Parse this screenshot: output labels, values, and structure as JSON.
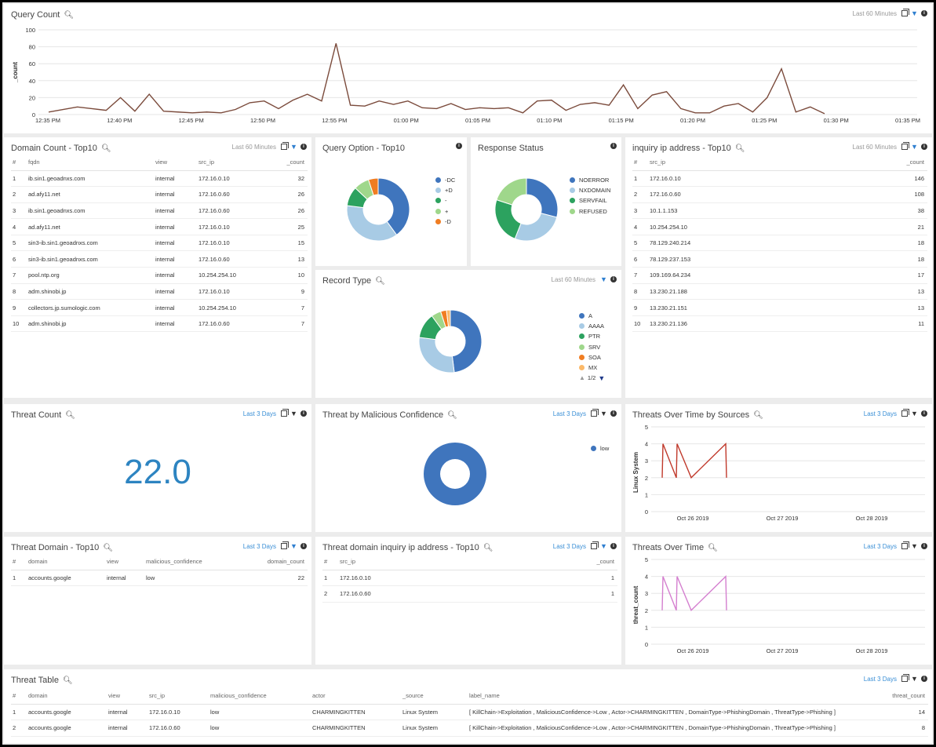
{
  "colors": {
    "blue": "#3f75bd",
    "lightblue": "#a8cbe5",
    "green": "#2ca25f",
    "lightgreen": "#9fd78b",
    "orange": "#f07d22",
    "lightorange": "#fbb969",
    "line": "#7b4b3c",
    "red": "#c0392b",
    "pink": "#d47fcf"
  },
  "icons": {
    "zoom": "magnifier-icon",
    "copy": "copy-icon",
    "filter": "funnel-icon",
    "info": "info-icon"
  },
  "query_count": {
    "title": "Query Count",
    "range": "Last 60 Minutes",
    "chart_data": {
      "type": "line",
      "ylabel": "_count",
      "ylim": [
        0,
        100
      ],
      "yticks": [
        "0",
        "20",
        "40",
        "60",
        "80",
        "100"
      ],
      "xticks": [
        "12:35 PM",
        "12:40 PM",
        "12:45 PM",
        "12:50 PM",
        "12:55 PM",
        "01:00 PM",
        "01:05 PM",
        "01:10 PM",
        "01:15 PM",
        "01:20 PM",
        "01:25 PM",
        "01:30 PM",
        "01:35 PM"
      ],
      "values": [
        3,
        6,
        9,
        7,
        5,
        20,
        4,
        24,
        4,
        3,
        2,
        3,
        2,
        6,
        14,
        16,
        7,
        17,
        24,
        16,
        84,
        11,
        10,
        16,
        12,
        16,
        8,
        7,
        13,
        6,
        8,
        7,
        8,
        2,
        16,
        17,
        5,
        12,
        14,
        11,
        35,
        7,
        23,
        27,
        7,
        2,
        2,
        10,
        13,
        3,
        20,
        54,
        3,
        9,
        1
      ]
    }
  },
  "domain_count": {
    "title": "Domain Count - Top10",
    "range": "Last 60 Minutes",
    "columns": [
      "#",
      "fqdn",
      "view",
      "src_ip",
      "_count"
    ],
    "rows": [
      [
        "1",
        "ib.sin1.geoadnxs.com",
        "internal",
        "172.16.0.10",
        "32"
      ],
      [
        "2",
        "ad.afy11.net",
        "internal",
        "172.16.0.60",
        "26"
      ],
      [
        "3",
        "ib.sin1.geoadnxs.com",
        "internal",
        "172.16.0.60",
        "26"
      ],
      [
        "4",
        "ad.afy11.net",
        "internal",
        "172.16.0.10",
        "25"
      ],
      [
        "5",
        "sin3-ib.sin1.geoadnxs.com",
        "internal",
        "172.16.0.10",
        "15"
      ],
      [
        "6",
        "sin3-ib.sin1.geoadnxs.com",
        "internal",
        "172.16.0.60",
        "13"
      ],
      [
        "7",
        "pool.ntp.org",
        "internal",
        "10.254.254.10",
        "10"
      ],
      [
        "8",
        "adm.shinobi.jp",
        "internal",
        "172.16.0.10",
        "9"
      ],
      [
        "9",
        "collectors.jp.sumologic.com",
        "internal",
        "10.254.254.10",
        "7"
      ],
      [
        "10",
        "adm.shinobi.jp",
        "internal",
        "172.16.0.60",
        "7"
      ]
    ]
  },
  "query_option": {
    "title": "Query Option - Top10",
    "chart_data": {
      "type": "pie",
      "labels": [
        "-DC",
        "+D",
        "-",
        "+",
        "-D"
      ],
      "values": [
        40,
        37,
        10,
        8,
        5
      ],
      "colors": [
        "#3f75bd",
        "#a8cbe5",
        "#2ca25f",
        "#9fd78b",
        "#f07d22"
      ]
    }
  },
  "response_status": {
    "title": "Response Status",
    "chart_data": {
      "type": "pie",
      "labels": [
        "NOERROR",
        "NXDOMAIN",
        "SERVFAIL",
        "REFUSED"
      ],
      "values": [
        29,
        27,
        24,
        20
      ],
      "colors": [
        "#3f75bd",
        "#a8cbe5",
        "#2ca25f",
        "#9fd78b"
      ]
    }
  },
  "record_type": {
    "title": "Record Type",
    "range": "Last 60 Minutes",
    "page": "1/2",
    "chart_data": {
      "type": "pie",
      "labels": [
        "A",
        "AAAA",
        "PTR",
        "SRV",
        "SOA",
        "MX"
      ],
      "values": [
        48,
        29,
        13,
        5,
        3,
        2
      ],
      "colors": [
        "#3f75bd",
        "#a8cbe5",
        "#2ca25f",
        "#9fd78b",
        "#f07d22",
        "#fbb969"
      ]
    }
  },
  "inquiry_ip": {
    "title": "inquiry ip address - Top10",
    "range": "Last 60 Minutes",
    "columns": [
      "#",
      "src_ip",
      "_count"
    ],
    "rows": [
      [
        "1",
        "172.16.0.10",
        "146"
      ],
      [
        "2",
        "172.16.0.60",
        "108"
      ],
      [
        "3",
        "10.1.1.153",
        "38"
      ],
      [
        "4",
        "10.254.254.10",
        "21"
      ],
      [
        "5",
        "78.129.240.214",
        "18"
      ],
      [
        "6",
        "78.129.237.153",
        "18"
      ],
      [
        "7",
        "109.169.64.234",
        "17"
      ],
      [
        "8",
        "13.230.21.188",
        "13"
      ],
      [
        "9",
        "13.230.21.151",
        "13"
      ],
      [
        "10",
        "13.230.21.136",
        "11"
      ]
    ]
  },
  "threat_count": {
    "title": "Threat Count",
    "range": "Last 3 Days",
    "value": "22.0"
  },
  "threat_confidence": {
    "title": "Threat by Malicious Confidence",
    "range": "Last 3 Days",
    "chart_data": {
      "type": "pie",
      "labels": [
        "low"
      ],
      "values": [
        100
      ],
      "colors": [
        "#3f75bd"
      ]
    }
  },
  "threats_sources": {
    "title": "Threats Over Time by Sources",
    "range": "Last 3 Days",
    "chart_data": {
      "type": "line",
      "ylabel": "Linux System",
      "ylim": [
        0,
        5
      ],
      "yticks": [
        "0",
        "1",
        "2",
        "3",
        "4",
        "5"
      ],
      "xticks": [
        "Oct 26 2019",
        "Oct 27 2019",
        "Oct 28 2019"
      ],
      "values": [
        2,
        4,
        2,
        4,
        2,
        4,
        2
      ]
    }
  },
  "threat_domain": {
    "title": "Threat Domain - Top10",
    "range": "Last 3 Days",
    "columns": [
      "#",
      "domain",
      "view",
      "malicious_confidence",
      "domain_count"
    ],
    "rows": [
      [
        "1",
        "accounts.google",
        "internal",
        "low",
        "22"
      ]
    ]
  },
  "threat_inquiry": {
    "title": "Threat domain inquiry ip address - Top10",
    "range": "Last 3 Days",
    "columns": [
      "#",
      "src_ip",
      "_count"
    ],
    "rows": [
      [
        "1",
        "172.16.0.10",
        "1"
      ],
      [
        "2",
        "172.16.0.60",
        "1"
      ]
    ]
  },
  "threats_time": {
    "title": "Threats Over Time",
    "range": "Last 3 Days",
    "chart_data": {
      "type": "line",
      "ylabel": "threat_count",
      "ylim": [
        0,
        5
      ],
      "yticks": [
        "0",
        "1",
        "2",
        "3",
        "4",
        "5"
      ],
      "xticks": [
        "Oct 26 2019",
        "Oct 27 2019",
        "Oct 28 2019"
      ],
      "values": [
        2,
        4,
        2,
        4,
        2,
        4,
        2
      ]
    }
  },
  "threat_table": {
    "title": "Threat Table",
    "range": "Last 3 Days",
    "columns": [
      "#",
      "domain",
      "view",
      "src_ip",
      "malicious_confidence",
      "actor",
      "_source",
      "label_name",
      "threat_count"
    ],
    "rows": [
      [
        "1",
        "accounts.google",
        "internal",
        "172.16.0.10",
        "low",
        "CHARMINGKITTEN",
        "Linux System",
        "[ KillChain->Exploitation , MaliciousConfidence->Low , Actor->CHARMINGKITTEN , DomainType->PhishingDomain , ThreatType->Phishing ]",
        "14"
      ],
      [
        "2",
        "accounts.google",
        "internal",
        "172.16.0.60",
        "low",
        "CHARMINGKITTEN",
        "Linux System",
        "[ KillChain->Exploitation , MaliciousConfidence->Low , Actor->CHARMINGKITTEN , DomainType->PhishingDomain , ThreatType->Phishing ]",
        "8"
      ]
    ]
  }
}
